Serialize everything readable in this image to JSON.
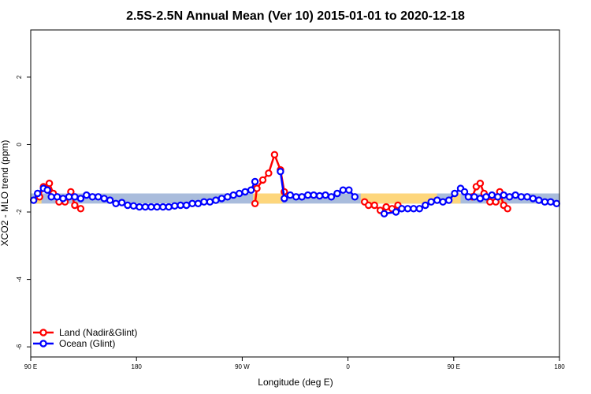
{
  "chart_data": {
    "type": "line",
    "title": "2.5S-2.5N Annual Mean (Ver 10)   2015-01-01 to 2020-12-18",
    "xlabel": "Longitude (deg E)",
    "ylabel": "XCO2 - MLO trend (ppm)",
    "xlim": [
      -90,
      180
    ],
    "ylim": [
      -6.3,
      3.4
    ],
    "x_ticks": [
      {
        "value": -90,
        "label": "90 E"
      },
      {
        "value": -36,
        "label": "180"
      },
      {
        "value": 18,
        "label": "90 W"
      },
      {
        "value": 72,
        "label": "0"
      },
      {
        "value": 126,
        "label": "90 E"
      },
      {
        "value": 180,
        "label": "180"
      }
    ],
    "y_ticks": [
      {
        "value": 2,
        "label": "2"
      },
      {
        "value": 0,
        "label": "0"
      },
      {
        "value": -2,
        "label": "-2"
      },
      {
        "value": -4,
        "label": "-4"
      },
      {
        "value": -6,
        "label": "-6"
      }
    ],
    "band_low": -1.75,
    "band_high": -1.45,
    "land_colors": {
      "ocean_band": "#a9bcdc",
      "land_band": "#fdd67c"
    },
    "land_band_segments": [
      [
        -87.5,
        -84.5
      ],
      [
        23.5,
        38.5
      ],
      [
        78.5,
        117.5
      ],
      [
        124.5,
        129.5
      ],
      [
        148.5,
        151.5
      ]
    ],
    "series": [
      {
        "name": "Land (Nadir&Glint)",
        "color": "#ff0000",
        "segments": [
          [
            [
              -85.5,
              -1.55
            ],
            [
              -83.5,
              -1.25
            ],
            [
              -80.5,
              -1.15
            ],
            [
              -78.5,
              -1.45
            ],
            [
              -75.5,
              -1.7
            ],
            [
              -72.5,
              -1.7
            ],
            [
              -69.5,
              -1.4
            ],
            [
              -67.5,
              -1.8
            ],
            [
              -64.5,
              -1.9
            ]
          ],
          [
            [
              24.5,
              -1.75
            ],
            [
              25.5,
              -1.3
            ],
            [
              28.5,
              -1.05
            ],
            [
              31.5,
              -0.85
            ],
            [
              34.5,
              -0.3
            ],
            [
              37.5,
              -0.75
            ],
            [
              39.5,
              -1.4
            ]
          ],
          [
            [
              80.5,
              -1.7
            ],
            [
              82.5,
              -1.8
            ],
            [
              85.5,
              -1.8
            ],
            [
              88.5,
              -1.95
            ],
            [
              91.5,
              -1.85
            ],
            [
              94.5,
              -1.9
            ],
            [
              97.5,
              -1.8
            ]
          ],
          [
            [
              135.5,
              -1.55
            ],
            [
              137.5,
              -1.25
            ],
            [
              139.5,
              -1.15
            ],
            [
              141.5,
              -1.45
            ],
            [
              144.5,
              -1.7
            ],
            [
              147.5,
              -1.7
            ],
            [
              149.5,
              -1.4
            ],
            [
              151.5,
              -1.8
            ],
            [
              153.5,
              -1.9
            ]
          ]
        ]
      },
      {
        "name": "Ocean (Glint)",
        "color": "#0000ff",
        "segments": [
          [
            [
              -88.5,
              -1.65
            ],
            [
              -86.5,
              -1.45
            ],
            [
              -83.5,
              -1.3
            ],
            [
              -81.5,
              -1.35
            ],
            [
              -79.5,
              -1.55
            ],
            [
              -76.5,
              -1.55
            ],
            [
              -73.5,
              -1.6
            ],
            [
              -70.5,
              -1.55
            ],
            [
              -67.5,
              -1.55
            ],
            [
              -64.5,
              -1.6
            ],
            [
              -61.5,
              -1.5
            ],
            [
              -58.5,
              -1.55
            ],
            [
              -55.5,
              -1.55
            ],
            [
              -52.5,
              -1.6
            ],
            [
              -49.5,
              -1.65
            ],
            [
              -46.5,
              -1.75
            ],
            [
              -43.5,
              -1.72
            ],
            [
              -40.5,
              -1.8
            ],
            [
              -37.5,
              -1.82
            ],
            [
              -34.5,
              -1.85
            ],
            [
              -31.5,
              -1.85
            ],
            [
              -28.5,
              -1.85
            ],
            [
              -25.5,
              -1.85
            ],
            [
              -22.5,
              -1.85
            ],
            [
              -19.5,
              -1.85
            ],
            [
              -16.5,
              -1.82
            ],
            [
              -13.5,
              -1.8
            ],
            [
              -10.5,
              -1.8
            ],
            [
              -7.5,
              -1.75
            ],
            [
              -4.5,
              -1.75
            ],
            [
              -1.5,
              -1.7
            ],
            [
              1.5,
              -1.7
            ],
            [
              4.5,
              -1.65
            ],
            [
              7.5,
              -1.6
            ],
            [
              10.5,
              -1.55
            ],
            [
              13.5,
              -1.5
            ],
            [
              16.5,
              -1.45
            ],
            [
              19.5,
              -1.4
            ],
            [
              22.5,
              -1.35
            ],
            [
              24.5,
              -1.1
            ]
          ],
          [
            [
              37.5,
              -0.8
            ],
            [
              39.5,
              -1.6
            ],
            [
              42.5,
              -1.5
            ],
            [
              45.5,
              -1.55
            ],
            [
              48.5,
              -1.55
            ],
            [
              51.5,
              -1.5
            ],
            [
              54.5,
              -1.5
            ],
            [
              57.5,
              -1.52
            ],
            [
              60.5,
              -1.5
            ],
            [
              63.5,
              -1.55
            ],
            [
              66.5,
              -1.45
            ],
            [
              69.5,
              -1.35
            ],
            [
              72.5,
              -1.35
            ],
            [
              75.5,
              -1.55
            ]
          ],
          [
            [
              90.5,
              -2.05
            ],
            [
              96.5,
              -2.0
            ],
            [
              99.5,
              -1.9
            ],
            [
              102.5,
              -1.9
            ],
            [
              105.5,
              -1.9
            ],
            [
              108.5,
              -1.9
            ],
            [
              111.5,
              -1.8
            ],
            [
              114.5,
              -1.7
            ],
            [
              117.5,
              -1.65
            ],
            [
              120.5,
              -1.7
            ],
            [
              123.5,
              -1.65
            ],
            [
              126.5,
              -1.45
            ],
            [
              129.5,
              -1.3
            ],
            [
              131.5,
              -1.4
            ],
            [
              133.5,
              -1.55
            ],
            [
              136.5,
              -1.55
            ],
            [
              139.5,
              -1.6
            ],
            [
              142.5,
              -1.55
            ],
            [
              145.5,
              -1.5
            ],
            [
              148.5,
              -1.55
            ],
            [
              151.5,
              -1.5
            ],
            [
              154.5,
              -1.55
            ],
            [
              157.5,
              -1.5
            ],
            [
              160.5,
              -1.55
            ],
            [
              163.5,
              -1.55
            ],
            [
              166.5,
              -1.6
            ],
            [
              169.5,
              -1.65
            ],
            [
              172.5,
              -1.7
            ],
            [
              175.5,
              -1.7
            ],
            [
              178.5,
              -1.75
            ]
          ]
        ]
      }
    ],
    "legend": {
      "placement": "bottom-left",
      "items": [
        {
          "label": "Land (Nadir&Glint)",
          "color": "#ff0000"
        },
        {
          "label": "Ocean (Glint)",
          "color": "#0000ff"
        }
      ]
    },
    "grid": false
  }
}
